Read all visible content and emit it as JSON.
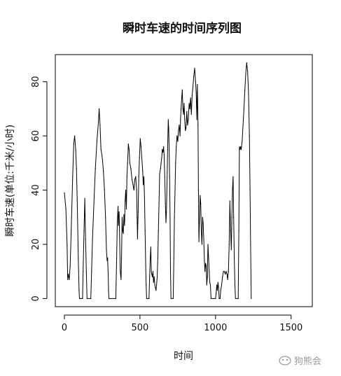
{
  "chart_data": {
    "type": "line",
    "title": "瞬时车速的时间序列图",
    "xlabel": "时间",
    "ylabel": "瞬时车速(单位:千米/小时)",
    "xlim": [
      -60,
      1640
    ],
    "ylim": [
      -3,
      90
    ],
    "xticks": [
      0,
      500,
      1000,
      1500
    ],
    "yticks": [
      0,
      20,
      40,
      60,
      80
    ],
    "x_tick_labels": [
      "0",
      "500",
      "1000",
      "1500"
    ],
    "y_tick_labels": [
      "0",
      "20",
      "40",
      "60",
      "80"
    ],
    "grid": false,
    "legend": "none",
    "series": [
      {
        "color": "#000000",
        "points": [
          [
            0,
            39
          ],
          [
            10,
            33
          ],
          [
            18,
            20
          ],
          [
            22,
            7
          ],
          [
            26,
            9
          ],
          [
            32,
            7
          ],
          [
            38,
            12
          ],
          [
            45,
            25
          ],
          [
            55,
            45
          ],
          [
            62,
            57
          ],
          [
            68,
            60
          ],
          [
            75,
            55
          ],
          [
            80,
            48
          ],
          [
            85,
            36
          ],
          [
            92,
            15
          ],
          [
            97,
            3
          ],
          [
            100,
            0
          ],
          [
            120,
            0
          ],
          [
            124,
            10
          ],
          [
            130,
            25
          ],
          [
            135,
            37
          ],
          [
            140,
            22
          ],
          [
            145,
            10
          ],
          [
            150,
            0
          ],
          [
            175,
            0
          ],
          [
            180,
            10
          ],
          [
            186,
            22
          ],
          [
            195,
            35
          ],
          [
            205,
            48
          ],
          [
            215,
            58
          ],
          [
            225,
            65
          ],
          [
            230,
            70
          ],
          [
            236,
            64
          ],
          [
            242,
            55
          ],
          [
            248,
            53
          ],
          [
            252,
            51
          ],
          [
            258,
            47
          ],
          [
            265,
            40
          ],
          [
            272,
            30
          ],
          [
            278,
            18
          ],
          [
            283,
            14
          ],
          [
            286,
            15
          ],
          [
            290,
            8
          ],
          [
            292,
            3
          ],
          [
            295,
            0
          ],
          [
            340,
            0
          ],
          [
            342,
            5
          ],
          [
            346,
            15
          ],
          [
            350,
            28
          ],
          [
            355,
            34
          ],
          [
            358,
            27
          ],
          [
            362,
            32
          ],
          [
            366,
            20
          ],
          [
            370,
            10
          ],
          [
            375,
            7
          ],
          [
            378,
            15
          ],
          [
            382,
            30
          ],
          [
            386,
            25
          ],
          [
            390,
            24
          ],
          [
            394,
            31
          ],
          [
            398,
            27
          ],
          [
            402,
            36
          ],
          [
            406,
            40
          ],
          [
            410,
            33
          ],
          [
            414,
            45
          ],
          [
            418,
            50
          ],
          [
            423,
            57
          ],
          [
            428,
            55
          ],
          [
            433,
            50
          ],
          [
            440,
            48
          ],
          [
            447,
            44
          ],
          [
            454,
            42
          ],
          [
            460,
            40
          ],
          [
            466,
            44
          ],
          [
            472,
            45
          ],
          [
            478,
            40
          ],
          [
            481,
            30
          ],
          [
            484,
            22
          ],
          [
            488,
            32
          ],
          [
            492,
            45
          ],
          [
            497,
            52
          ],
          [
            502,
            59
          ],
          [
            507,
            56
          ],
          [
            512,
            52
          ],
          [
            518,
            47
          ],
          [
            522,
            42
          ],
          [
            526,
            45
          ],
          [
            530,
            37
          ],
          [
            534,
            25
          ],
          [
            538,
            12
          ],
          [
            541,
            5
          ],
          [
            544,
            0
          ],
          [
            560,
            0
          ],
          [
            564,
            8
          ],
          [
            568,
            15
          ],
          [
            572,
            19
          ],
          [
            575,
            10
          ],
          [
            578,
            9
          ],
          [
            582,
            8
          ],
          [
            586,
            10
          ],
          [
            590,
            6
          ],
          [
            594,
            8
          ],
          [
            598,
            5
          ],
          [
            602,
            4
          ],
          [
            606,
            3
          ],
          [
            610,
            5
          ],
          [
            614,
            8
          ],
          [
            618,
            15
          ],
          [
            622,
            25
          ],
          [
            626,
            35
          ],
          [
            630,
            46
          ],
          [
            636,
            48
          ],
          [
            640,
            50
          ],
          [
            644,
            52
          ],
          [
            648,
            55
          ],
          [
            652,
            54
          ],
          [
            656,
            56
          ],
          [
            660,
            53
          ],
          [
            664,
            45
          ],
          [
            668,
            35
          ],
          [
            672,
            28
          ],
          [
            675,
            32
          ],
          [
            679,
            42
          ],
          [
            683,
            55
          ],
          [
            687,
            66
          ],
          [
            690,
            63
          ],
          [
            693,
            55
          ],
          [
            696,
            45
          ],
          [
            699,
            30
          ],
          [
            702,
            10
          ],
          [
            705,
            0
          ],
          [
            720,
            0
          ],
          [
            724,
            15
          ],
          [
            728,
            30
          ],
          [
            732,
            40
          ],
          [
            736,
            50
          ],
          [
            740,
            56
          ],
          [
            745,
            60
          ],
          [
            750,
            58
          ],
          [
            755,
            62
          ],
          [
            760,
            64
          ],
          [
            765,
            60
          ],
          [
            768,
            66
          ],
          [
            772,
            70
          ],
          [
            776,
            74
          ],
          [
            780,
            77
          ],
          [
            784,
            70
          ],
          [
            788,
            68
          ],
          [
            792,
            72
          ],
          [
            796,
            66
          ],
          [
            800,
            62
          ],
          [
            805,
            63
          ],
          [
            810,
            69
          ],
          [
            815,
            64
          ],
          [
            820,
            66
          ],
          [
            825,
            72
          ],
          [
            830,
            70
          ],
          [
            835,
            74
          ],
          [
            840,
            68
          ],
          [
            845,
            75
          ],
          [
            850,
            78
          ],
          [
            856,
            82
          ],
          [
            862,
            85
          ],
          [
            868,
            80
          ],
          [
            872,
            76
          ],
          [
            876,
            66
          ],
          [
            880,
            79
          ],
          [
            884,
            64
          ],
          [
            887,
            40
          ],
          [
            890,
            21
          ],
          [
            894,
            30
          ],
          [
            898,
            38
          ],
          [
            902,
            35
          ],
          [
            906,
            25
          ],
          [
            910,
            20
          ],
          [
            914,
            30
          ],
          [
            918,
            28
          ],
          [
            922,
            22
          ],
          [
            926,
            14
          ],
          [
            930,
            10
          ],
          [
            934,
            13
          ],
          [
            938,
            12
          ],
          [
            942,
            5
          ],
          [
            946,
            8
          ],
          [
            950,
            20
          ],
          [
            954,
            15
          ],
          [
            958,
            10
          ],
          [
            962,
            6
          ],
          [
            966,
            5
          ],
          [
            970,
            0
          ],
          [
            1000,
            0
          ],
          [
            1004,
            2
          ],
          [
            1008,
            5
          ],
          [
            1012,
            3
          ],
          [
            1016,
            6
          ],
          [
            1020,
            4
          ],
          [
            1024,
            0
          ],
          [
            1030,
            0
          ],
          [
            1034,
            3
          ],
          [
            1040,
            5
          ],
          [
            1046,
            8
          ],
          [
            1052,
            10
          ],
          [
            1058,
            10
          ],
          [
            1064,
            9
          ],
          [
            1070,
            10
          ],
          [
            1076,
            9
          ],
          [
            1080,
            7
          ],
          [
            1085,
            10
          ],
          [
            1090,
            20
          ],
          [
            1095,
            36
          ],
          [
            1100,
            25
          ],
          [
            1104,
            18
          ],
          [
            1108,
            30
          ],
          [
            1112,
            40
          ],
          [
            1116,
            45
          ],
          [
            1120,
            30
          ],
          [
            1124,
            15
          ],
          [
            1128,
            5
          ],
          [
            1132,
            0
          ],
          [
            1150,
            0
          ],
          [
            1154,
            25
          ],
          [
            1158,
            56
          ],
          [
            1162,
            55
          ],
          [
            1166,
            56
          ],
          [
            1170,
            55
          ],
          [
            1176,
            58
          ],
          [
            1182,
            64
          ],
          [
            1188,
            70
          ],
          [
            1194,
            77
          ],
          [
            1200,
            83
          ],
          [
            1206,
            87
          ],
          [
            1212,
            84
          ],
          [
            1218,
            76
          ],
          [
            1224,
            60
          ],
          [
            1228,
            40
          ],
          [
            1232,
            20
          ],
          [
            1236,
            0
          ]
        ]
      }
    ]
  },
  "watermark": {
    "text": "狗熊会",
    "icon": "paw-bubble-icon"
  }
}
